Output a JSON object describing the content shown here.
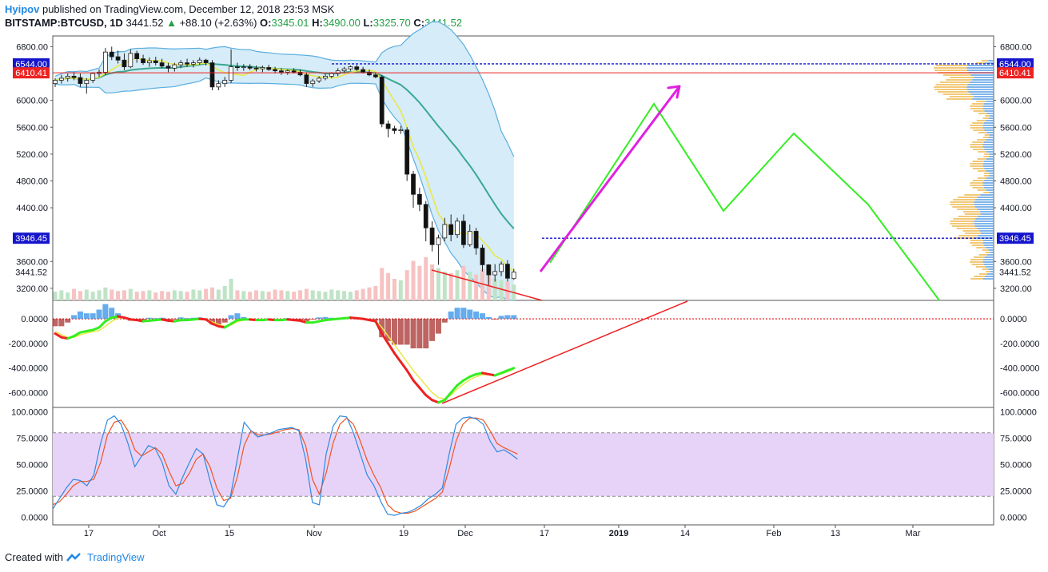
{
  "header": {
    "author": "Hyipov",
    "published_text": "published on TradingView.com, December 12, 2018 23:53 MSK",
    "symbol": "BITSTAMP:BTCUSD, 1D",
    "last": "3441.52",
    "change_arrow": "▲",
    "change": "+88.10 (+2.63%)",
    "o_label": "O:",
    "o_value": "3345.01",
    "h_label": "H:",
    "h_value": "3490.00",
    "l_label": "L:",
    "l_value": "3325.70",
    "c_label": "C:",
    "c_value": "3441.52"
  },
  "footer": {
    "created_with": "Created with",
    "brand": "TradingView"
  },
  "colors": {
    "up": "#2e7d32",
    "down": "#111111",
    "bb": "#5aaee0",
    "bb_fill": "#d6ecf8",
    "ema_fast": "#e8e84a",
    "ema_slow": "#3aa890",
    "green_path": "#33ee22",
    "magenta": "#e020e0",
    "red": "#ee2222",
    "level_blue": "#1515cc",
    "stoch_k": "#2d8ae0",
    "stoch_d": "#ee5522",
    "stoch_band": "#e8d3f8"
  },
  "chart_data": [
    {
      "type": "candlestick",
      "panel": "price",
      "price_axis_ticks": [
        "6800.00",
        "6000.00",
        "5600.00",
        "5200.00",
        "4800.00",
        "4400.00",
        "3600.00",
        "3200.00"
      ],
      "x_axis_ticks": [
        "17",
        "Oct",
        "15",
        "Nov",
        "19",
        "Dec",
        "17",
        "2019",
        "14",
        "Feb",
        "13",
        "Mar"
      ],
      "price_labels": [
        {
          "text": "6544.00",
          "value": 6544,
          "color": "#1515cc"
        },
        {
          "text": "6410.41",
          "value": 6410.41,
          "color": "#ee2222"
        },
        {
          "text": "3946.45",
          "value": 3946.45,
          "color": "#1515cc"
        },
        {
          "text": "3441.52",
          "value": 3441.52,
          "color": "none"
        }
      ],
      "ylim": [
        3020,
        6960
      ],
      "candles": [
        [
          6250,
          6330,
          6200,
          6300
        ],
        [
          6300,
          6380,
          6250,
          6330
        ],
        [
          6330,
          6400,
          6280,
          6360
        ],
        [
          6360,
          6420,
          6300,
          6340
        ],
        [
          6340,
          6400,
          6200,
          6250
        ],
        [
          6250,
          6330,
          6100,
          6300
        ],
        [
          6300,
          6420,
          6260,
          6400
        ],
        [
          6400,
          6460,
          6350,
          6420
        ],
        [
          6420,
          6780,
          6380,
          6720
        ],
        [
          6720,
          6800,
          6600,
          6650
        ],
        [
          6650,
          6740,
          6550,
          6600
        ],
        [
          6600,
          6700,
          6450,
          6500
        ],
        [
          6500,
          6760,
          6480,
          6700
        ],
        [
          6700,
          6740,
          6560,
          6620
        ],
        [
          6620,
          6680,
          6530,
          6560
        ],
        [
          6560,
          6640,
          6500,
          6590
        ],
        [
          6590,
          6650,
          6520,
          6560
        ],
        [
          6560,
          6620,
          6480,
          6510
        ],
        [
          6510,
          6560,
          6420,
          6480
        ],
        [
          6480,
          6560,
          6430,
          6530
        ],
        [
          6530,
          6600,
          6480,
          6560
        ],
        [
          6560,
          6620,
          6500,
          6540
        ],
        [
          6540,
          6600,
          6490,
          6560
        ],
        [
          6560,
          6640,
          6530,
          6600
        ],
        [
          6600,
          6620,
          6520,
          6560
        ],
        [
          6560,
          6600,
          6150,
          6200
        ],
        [
          6200,
          6300,
          6150,
          6250
        ],
        [
          6250,
          6350,
          6200,
          6300
        ],
        [
          6300,
          6760,
          6260,
          6500
        ],
        [
          6500,
          6560,
          6440,
          6490
        ],
        [
          6490,
          6540,
          6440,
          6500
        ],
        [
          6500,
          6540,
          6450,
          6480
        ],
        [
          6480,
          6520,
          6430,
          6470
        ],
        [
          6470,
          6520,
          6420,
          6490
        ],
        [
          6490,
          6530,
          6440,
          6460
        ],
        [
          6460,
          6500,
          6400,
          6440
        ],
        [
          6440,
          6480,
          6380,
          6420
        ],
        [
          6420,
          6460,
          6380,
          6440
        ],
        [
          6440,
          6480,
          6400,
          6420
        ],
        [
          6420,
          6460,
          6360,
          6380
        ],
        [
          6380,
          6420,
          6200,
          6250
        ],
        [
          6250,
          6320,
          6200,
          6290
        ],
        [
          6290,
          6360,
          6260,
          6330
        ],
        [
          6330,
          6400,
          6300,
          6360
        ],
        [
          6360,
          6420,
          6330,
          6400
        ],
        [
          6400,
          6480,
          6360,
          6440
        ],
        [
          6440,
          6500,
          6400,
          6470
        ],
        [
          6470,
          6520,
          6440,
          6500
        ],
        [
          6500,
          6530,
          6440,
          6460
        ],
        [
          6460,
          6500,
          6400,
          6420
        ],
        [
          6420,
          6460,
          6360,
          6380
        ],
        [
          6380,
          6420,
          6330,
          6350
        ],
        [
          6350,
          6380,
          5600,
          5650
        ],
        [
          5650,
          5700,
          5450,
          5580
        ],
        [
          5580,
          5620,
          5500,
          5550
        ],
        [
          5550,
          5620,
          5500,
          5560
        ],
        [
          5560,
          5600,
          4800,
          4900
        ],
        [
          4900,
          4950,
          4400,
          4600
        ],
        [
          4600,
          4700,
          4350,
          4450
        ],
        [
          4450,
          4500,
          3900,
          4100
        ],
        [
          4100,
          4200,
          3750,
          3850
        ],
        [
          3850,
          4000,
          3550,
          3950
        ],
        [
          3950,
          4250,
          3900,
          4150
        ],
        [
          4150,
          4300,
          3900,
          4000
        ],
        [
          4000,
          4250,
          3950,
          4200
        ],
        [
          4200,
          4300,
          3800,
          3850
        ],
        [
          3850,
          4150,
          3820,
          4050
        ],
        [
          4050,
          4100,
          3700,
          3800
        ],
        [
          3800,
          3850,
          3450,
          3550
        ],
        [
          3550,
          3560,
          3250,
          3400
        ],
        [
          3400,
          3560,
          3300,
          3450
        ],
        [
          3450,
          3600,
          3380,
          3560
        ],
        [
          3560,
          3620,
          3300,
          3350
        ],
        [
          3345.01,
          3490,
          3325.7,
          3441.52
        ]
      ],
      "volume": [
        12,
        14,
        11,
        16,
        13,
        15,
        12,
        14,
        18,
        15,
        13,
        14,
        16,
        12,
        13,
        14,
        11,
        13,
        12,
        14,
        13,
        12,
        15,
        14,
        16,
        18,
        15,
        20,
        30,
        14,
        13,
        12,
        14,
        13,
        12,
        15,
        14,
        13,
        12,
        14,
        16,
        14,
        13,
        12,
        15,
        14,
        13,
        12,
        14,
        16,
        18,
        20,
        45,
        38,
        30,
        28,
        42,
        55,
        48,
        60,
        50,
        45,
        40,
        38,
        42,
        48,
        40,
        36,
        44,
        35,
        30,
        28,
        26,
        22
      ]
    },
    {
      "type": "line",
      "panel": "oscillator",
      "y_axis_ticks": [
        "0.0000",
        "-200.0000",
        "-400.0000",
        "-600.0000"
      ],
      "ylim": [
        -720,
        150
      ],
      "series": [
        {
          "values": [
            -120,
            -150,
            -160,
            -140,
            -110,
            -100,
            -90,
            -70,
            -20,
            10,
            20,
            10,
            -5,
            -10,
            -20,
            -15,
            -10,
            -5,
            -15,
            -20,
            -10,
            -10,
            -5,
            0,
            -5,
            -40,
            -60,
            -70,
            -40,
            -10,
            -5,
            -5,
            -10,
            -10,
            -5,
            -10,
            -10,
            -5,
            -10,
            -15,
            -30,
            -30,
            -20,
            -10,
            -5,
            0,
            5,
            10,
            5,
            0,
            -10,
            -20,
            -120,
            -200,
            -280,
            -350,
            -420,
            -500,
            -560,
            -620,
            -660,
            -680,
            -660,
            -600,
            -540,
            -500,
            -470,
            -450,
            -440,
            -450,
            -460,
            -440,
            -420,
            -400
          ]
        },
        {
          "values": [
            -100,
            -130,
            -150,
            -150,
            -130,
            -115,
            -105,
            -95,
            -60,
            -20,
            5,
            10,
            0,
            -8,
            -15,
            -18,
            -12,
            -8,
            -12,
            -18,
            -14,
            -12,
            -8,
            -4,
            -4,
            -25,
            -45,
            -60,
            -50,
            -25,
            -10,
            -6,
            -8,
            -10,
            -6,
            -8,
            -9,
            -7,
            -8,
            -12,
            -22,
            -28,
            -24,
            -15,
            -8,
            -2,
            3,
            8,
            6,
            2,
            -6,
            -15,
            -70,
            -140,
            -210,
            -280,
            -350,
            -420,
            -480,
            -540,
            -600,
            -640,
            -650,
            -620,
            -570,
            -530,
            -495,
            -470,
            -455,
            -455,
            -458,
            -448,
            -430,
            -410
          ]
        }
      ]
    },
    {
      "type": "line",
      "panel": "stochastic",
      "y_axis_ticks": [
        "100.0000",
        "75.0000",
        "50.0000",
        "25.0000",
        "0.0000"
      ],
      "ylim": [
        -7,
        104
      ],
      "band": [
        20,
        80
      ],
      "series": [
        {
          "values": [
            8,
            18,
            28,
            36,
            35,
            30,
            40,
            70,
            92,
            96,
            88,
            70,
            48,
            58,
            68,
            65,
            52,
            30,
            22,
            38,
            52,
            65,
            60,
            35,
            12,
            10,
            20,
            55,
            90,
            82,
            76,
            78,
            80,
            83,
            84,
            85,
            82,
            55,
            14,
            12,
            60,
            86,
            96,
            95,
            80,
            60,
            40,
            30,
            15,
            3,
            2,
            4,
            5,
            8,
            12,
            18,
            22,
            28,
            60,
            88,
            94,
            95,
            93,
            88,
            72,
            62,
            64,
            60,
            55
          ]
        },
        {
          "values": [
            12,
            15,
            22,
            30,
            34,
            34,
            36,
            52,
            78,
            90,
            92,
            82,
            64,
            58,
            62,
            66,
            60,
            44,
            30,
            32,
            42,
            55,
            60,
            48,
            28,
            16,
            18,
            38,
            68,
            82,
            78,
            78,
            79,
            81,
            83,
            84,
            83,
            68,
            36,
            22,
            42,
            70,
            88,
            94,
            88,
            72,
            54,
            40,
            28,
            12,
            6,
            4,
            4,
            6,
            10,
            14,
            18,
            24,
            46,
            72,
            88,
            94,
            94,
            92,
            82,
            70,
            66,
            63,
            60
          ]
        }
      ]
    }
  ],
  "annotations": {
    "green_path": [
      [
        688,
        329
      ],
      [
        818,
        130
      ],
      [
        905,
        264
      ],
      [
        993,
        167
      ],
      [
        1086,
        256
      ],
      [
        1175,
        376
      ]
    ],
    "magenta_arrow": {
      "from": [
        676,
        340
      ],
      "to": [
        850,
        108
      ]
    },
    "red_trend_price": {
      "from": [
        540,
        338
      ],
      "to": [
        678,
        376
      ]
    },
    "red_trend_osc": {
      "from": [
        553,
        505
      ],
      "to": [
        860,
        377
      ]
    }
  }
}
